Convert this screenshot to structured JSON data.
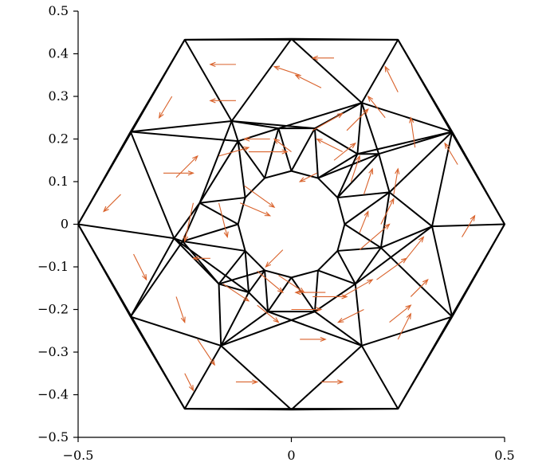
{
  "chart_data": {
    "type": "vector-field-on-triangular-mesh",
    "title": "",
    "xlabel": "",
    "ylabel": "",
    "xlim": [
      -0.5,
      0.5
    ],
    "ylim": [
      -0.5,
      0.5
    ],
    "x_ticks": [
      {
        "value": -0.5,
        "label": "−0.5"
      },
      {
        "value": 0,
        "label": "0"
      },
      {
        "value": 0.5,
        "label": "0.5"
      }
    ],
    "y_ticks": [
      {
        "value": 0.5,
        "label": "0.5"
      },
      {
        "value": 0.4,
        "label": "0.4"
      },
      {
        "value": 0.3,
        "label": "0.3"
      },
      {
        "value": 0.2,
        "label": "0.2"
      },
      {
        "value": 0.1,
        "label": "0.1"
      },
      {
        "value": 0,
        "label": "0"
      },
      {
        "value": -0.1,
        "label": "−0.1"
      },
      {
        "value": -0.2,
        "label": "−0.2"
      },
      {
        "value": -0.3,
        "label": "−0.3"
      },
      {
        "value": -0.4,
        "label": "−0.4"
      },
      {
        "value": -0.5,
        "label": "−0.5"
      }
    ],
    "arrow_color": "#d9622b",
    "mesh_color": "#000000",
    "mesh": {
      "outer_hexagon": [
        [
          0.5,
          0
        ],
        [
          0.25,
          0.433
        ],
        [
          -0.25,
          0.433
        ],
        [
          -0.5,
          0
        ],
        [
          -0.25,
          -0.433
        ],
        [
          0.25,
          -0.433
        ]
      ],
      "middle_ring": [
        [
          0.377,
          0.217
        ],
        [
          0.0,
          0.435
        ],
        [
          -0.377,
          0.217
        ],
        [
          -0.377,
          -0.217
        ],
        [
          0.0,
          -0.435
        ],
        [
          0.377,
          -0.217
        ]
      ],
      "outer_mid_points": [
        [
          0.165,
          0.285
        ],
        [
          -0.14,
          0.242
        ],
        [
          -0.275,
          -0.033
        ],
        [
          -0.165,
          -0.285
        ],
        [
          0.165,
          -0.285
        ],
        [
          0.33,
          -0.005
        ]
      ],
      "mid_points": [
        [
          0.155,
          0.165
        ],
        [
          0.055,
          0.225
        ],
        [
          -0.03,
          0.225
        ],
        [
          -0.125,
          0.195
        ],
        [
          -0.215,
          0.05
        ],
        [
          -0.255,
          -0.04
        ],
        [
          -0.17,
          -0.14
        ],
        [
          -0.1,
          -0.16
        ],
        [
          -0.055,
          -0.205
        ],
        [
          0.055,
          -0.205
        ],
        [
          0.15,
          -0.14
        ],
        [
          0.21,
          -0.055
        ],
        [
          0.23,
          0.075
        ],
        [
          0.205,
          0.165
        ]
      ],
      "hole_ring": [
        [
          0.1,
          0.0
        ],
        [
          0.087,
          0.05
        ],
        [
          0.05,
          0.087
        ],
        [
          0.0,
          0.1
        ],
        [
          -0.05,
          0.087
        ],
        [
          -0.087,
          0.05
        ],
        [
          -0.1,
          0.0
        ],
        [
          -0.087,
          -0.05
        ],
        [
          -0.05,
          -0.087
        ],
        [
          0.0,
          -0.1
        ],
        [
          0.05,
          -0.087
        ],
        [
          0.087,
          -0.05
        ]
      ],
      "hole_radius": 0.125
    },
    "vectors": [
      [
        -0.13,
        0.375,
        -0.06,
        0.0
      ],
      [
        0.1,
        0.39,
        -0.05,
        0.0
      ],
      [
        -0.28,
        0.3,
        -0.03,
        -0.05
      ],
      [
        -0.3,
        0.12,
        0.07,
        0.0
      ],
      [
        -0.4,
        0.07,
        -0.04,
        -0.04
      ],
      [
        -0.37,
        -0.07,
        0.03,
        -0.06
      ],
      [
        -0.27,
        -0.17,
        0.02,
        -0.06
      ],
      [
        -0.22,
        -0.27,
        0.04,
        -0.06
      ],
      [
        -0.25,
        -0.35,
        0.02,
        -0.04
      ],
      [
        -0.13,
        -0.37,
        0.05,
        0.0
      ],
      [
        0.07,
        -0.37,
        0.05,
        0.0
      ],
      [
        0.25,
        -0.27,
        0.03,
        0.06
      ],
      [
        0.4,
        -0.03,
        0.03,
        0.05
      ],
      [
        0.39,
        0.14,
        -0.03,
        0.05
      ],
      [
        0.25,
        0.31,
        -0.03,
        0.06
      ],
      [
        0.02,
        0.35,
        -0.06,
        0.02
      ],
      [
        -0.13,
        0.29,
        -0.06,
        0.0
      ],
      [
        -0.17,
        0.16,
        0.07,
        0.02
      ],
      [
        -0.1,
        0.17,
        0.09,
        0.0
      ],
      [
        -0.11,
        0.09,
        0.07,
        -0.05
      ],
      [
        -0.12,
        0.05,
        0.07,
        -0.03
      ],
      [
        -0.17,
        0.05,
        0.02,
        -0.08
      ],
      [
        -0.23,
        0.05,
        -0.02,
        -0.09
      ],
      [
        -0.19,
        -0.08,
        -0.04,
        0.0
      ],
      [
        -0.16,
        -0.14,
        0.06,
        -0.04
      ],
      [
        -0.08,
        -0.19,
        0.05,
        -0.04
      ],
      [
        -0.03,
        -0.12,
        0.06,
        -0.04
      ],
      [
        0.0,
        -0.2,
        0.07,
        0.0
      ],
      [
        0.02,
        -0.27,
        0.06,
        0.0
      ],
      [
        0.05,
        -0.17,
        0.08,
        0.0
      ],
      [
        0.12,
        -0.17,
        0.07,
        0.04
      ],
      [
        0.2,
        -0.13,
        0.07,
        0.05
      ],
      [
        0.28,
        -0.17,
        0.04,
        0.04
      ],
      [
        0.27,
        -0.08,
        0.04,
        0.05
      ],
      [
        0.16,
        -0.06,
        0.07,
        0.06
      ],
      [
        0.21,
        0.0,
        0.03,
        0.06
      ],
      [
        0.24,
        0.07,
        0.01,
        0.06
      ],
      [
        0.17,
        0.07,
        0.02,
        0.06
      ],
      [
        0.16,
        -0.02,
        0.02,
        0.05
      ],
      [
        0.14,
        0.1,
        0.02,
        0.06
      ],
      [
        0.1,
        0.15,
        0.05,
        0.04
      ],
      [
        0.05,
        0.22,
        0.07,
        0.04
      ],
      [
        0.13,
        0.22,
        0.05,
        0.05
      ],
      [
        0.07,
        0.32,
        -0.06,
        0.03
      ],
      [
        0.22,
        0.25,
        -0.04,
        0.05
      ],
      [
        0.29,
        0.18,
        -0.01,
        0.07
      ],
      [
        0.0,
        0.17,
        -0.04,
        0.03
      ],
      [
        -0.05,
        0.2,
        -0.06,
        0.0
      ],
      [
        0.12,
        0.17,
        -0.06,
        0.03
      ],
      [
        0.06,
        0.12,
        -0.04,
        -0.02
      ],
      [
        0.23,
        -0.23,
        0.05,
        0.04
      ],
      [
        0.17,
        -0.2,
        -0.06,
        -0.03
      ],
      [
        0.08,
        -0.16,
        -0.07,
        0.0
      ],
      [
        -0.02,
        -0.06,
        -0.04,
        -0.04
      ],
      [
        -0.08,
        -0.11,
        0.06,
        -0.05
      ],
      [
        -0.27,
        0.11,
        0.05,
        0.05
      ]
    ]
  }
}
